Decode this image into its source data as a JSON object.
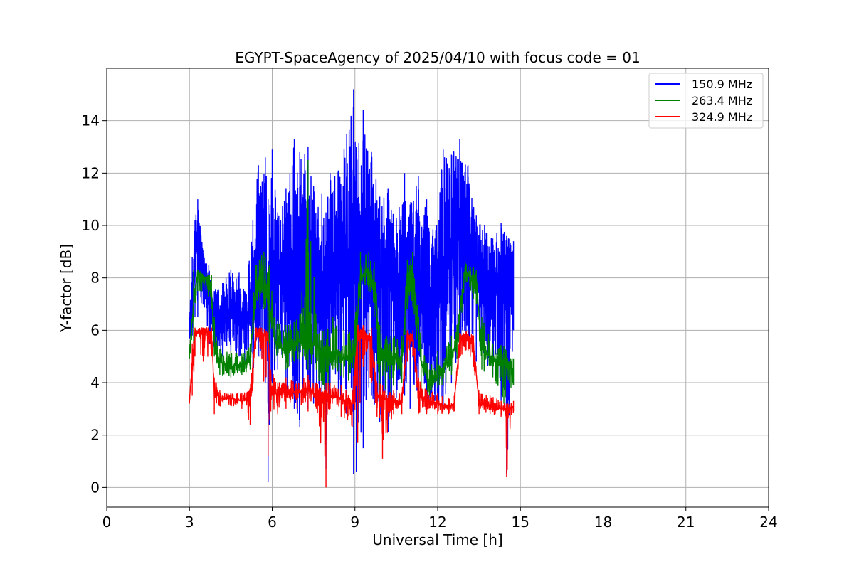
{
  "chart_data": {
    "type": "line",
    "title": "EGYPT-SpaceAgency of 2025/04/10 with focus code = 01",
    "xlabel": "Universal Time [h]",
    "ylabel": "Y-factor [dB]",
    "xlim": [
      0,
      24
    ],
    "ylim": [
      -0.75,
      16
    ],
    "xticks": [
      0,
      3,
      6,
      9,
      12,
      15,
      18,
      21,
      24
    ],
    "yticks": [
      0,
      2,
      4,
      6,
      8,
      10,
      12,
      14
    ],
    "grid": true,
    "legend_position": "top-right",
    "series": [
      {
        "name": "150.9 MHz",
        "color": "#0000ff",
        "x": [
          3.0,
          3.1,
          3.2,
          3.3,
          3.5,
          3.7,
          3.9,
          4.2,
          4.5,
          4.8,
          5.0,
          5.3,
          5.5,
          5.75,
          5.85,
          6.0,
          6.2,
          6.5,
          6.8,
          7.0,
          7.3,
          7.5,
          7.8,
          7.95,
          8.1,
          8.4,
          8.7,
          8.95,
          9.05,
          9.3,
          9.6,
          9.9,
          10.2,
          10.5,
          10.8,
          11.0,
          11.3,
          11.6,
          11.9,
          12.2,
          12.5,
          12.8,
          12.9,
          13.1,
          13.4,
          13.7,
          14.0,
          14.3,
          14.5,
          14.75
        ],
        "y": [
          6.0,
          7.0,
          8.5,
          9.5,
          9.0,
          7.0,
          6.5,
          6.3,
          6.5,
          6.8,
          6.2,
          7.5,
          8.5,
          7.5,
          5.5,
          7.0,
          8.0,
          7.5,
          7.0,
          8.5,
          8.0,
          7.0,
          8.0,
          6.0,
          7.5,
          8.0,
          8.5,
          9.5,
          9.0,
          8.5,
          8.0,
          7.5,
          8.0,
          7.0,
          6.5,
          8.0,
          7.0,
          6.5,
          7.0,
          7.5,
          9.0,
          9.5,
          10.0,
          9.0,
          8.0,
          7.5,
          7.0,
          8.0,
          7.5,
          8.0
        ],
        "y_max": [
          6.5,
          8.8,
          10.2,
          11.0,
          8.9,
          8.5,
          7.5,
          7.8,
          8.3,
          8.2,
          7.5,
          10.2,
          12.3,
          12.6,
          11.0,
          12.9,
          10.5,
          11.4,
          13.3,
          12.8,
          13.0,
          11.5,
          11.2,
          10.5,
          12.0,
          12.1,
          13.5,
          15.2,
          13.0,
          14.4,
          12.8,
          11.1,
          11.4,
          10.3,
          12.0,
          10.8,
          11.9,
          11.0,
          9.5,
          12.9,
          12.7,
          13.3,
          12.4,
          12.3,
          10.4,
          10.0,
          9.5,
          10.1,
          9.6,
          9.4
        ],
        "y_min": [
          5.7,
          5.8,
          6.5,
          6.5,
          7.0,
          5.5,
          5.2,
          5.0,
          5.2,
          5.0,
          4.8,
          4.5,
          5.0,
          4.0,
          0.2,
          4.0,
          4.5,
          3.5,
          3.0,
          2.3,
          3.0,
          3.2,
          3.0,
          0.7,
          3.5,
          3.5,
          2.8,
          0.5,
          0.6,
          1.5,
          3.5,
          2.5,
          2.1,
          3.4,
          3.5,
          3.0,
          3.0,
          3.2,
          3.3,
          3.0,
          4.0,
          5.0,
          6.0,
          5.5,
          4.8,
          4.7,
          4.3,
          3.3,
          0.5,
          6.0
        ]
      },
      {
        "name": "263.4 MHz",
        "color": "#008000",
        "x": [
          3.0,
          3.15,
          3.3,
          3.6,
          3.8,
          3.9,
          4.1,
          4.5,
          4.9,
          5.2,
          5.4,
          5.7,
          5.9,
          6.1,
          6.5,
          7.0,
          7.3,
          7.6,
          7.9,
          8.2,
          8.6,
          9.0,
          9.2,
          9.5,
          9.7,
          9.9,
          10.3,
          10.7,
          10.9,
          11.1,
          11.4,
          11.7,
          12.0,
          12.3,
          12.5,
          12.7,
          13.0,
          13.3,
          13.4,
          13.6,
          14.0,
          14.4,
          14.75
        ],
        "y": [
          5.1,
          7.0,
          8.2,
          8.0,
          7.5,
          5.5,
          4.8,
          4.6,
          4.7,
          4.9,
          7.5,
          7.6,
          7.0,
          5.5,
          5.2,
          5.6,
          5.3,
          5.5,
          5.0,
          5.2,
          4.9,
          5.2,
          8.0,
          8.3,
          7.5,
          5.3,
          5.0,
          4.8,
          7.8,
          8.2,
          4.8,
          4.0,
          4.3,
          4.7,
          5.0,
          5.6,
          8.3,
          7.8,
          7.9,
          5.3,
          4.9,
          4.8,
          4.5
        ],
        "y_max": [
          5.3,
          8.3,
          8.3,
          8.2,
          8.1,
          6.5,
          5.3,
          5.2,
          5.1,
          5.5,
          8.5,
          9.0,
          8.5,
          6.5,
          6.2,
          6.6,
          12.5,
          6.3,
          6.0,
          6.5,
          6.0,
          6.4,
          9.0,
          9.0,
          8.6,
          6.2,
          5.8,
          5.8,
          8.7,
          9.0,
          5.5,
          4.5,
          5.2,
          5.3,
          5.8,
          6.2,
          8.6,
          8.4,
          8.3,
          6.5,
          5.5,
          5.4,
          4.9
        ],
        "y_min": [
          4.9,
          5.5,
          7.5,
          7.5,
          6.8,
          5.0,
          4.3,
          4.2,
          4.3,
          4.5,
          6.8,
          6.8,
          5.5,
          4.8,
          4.5,
          4.8,
          4.5,
          4.5,
          2.5,
          4.5,
          4.2,
          3.5,
          7.2,
          7.5,
          6.5,
          3.5,
          3.6,
          4.0,
          6.8,
          6.9,
          3.8,
          3.5,
          3.8,
          4.0,
          4.3,
          4.9,
          7.8,
          7.2,
          7.0,
          4.5,
          4.2,
          3.2,
          3.9
        ]
      },
      {
        "name": "324.9 MHz",
        "color": "#ff0000",
        "x": [
          3.0,
          3.1,
          3.2,
          3.5,
          3.8,
          3.9,
          4.1,
          4.5,
          4.9,
          5.2,
          5.4,
          5.6,
          5.85,
          5.95,
          6.2,
          6.5,
          6.9,
          7.3,
          7.6,
          7.95,
          8.1,
          8.5,
          8.9,
          9.1,
          9.3,
          9.6,
          9.8,
          10.0,
          10.4,
          10.7,
          10.9,
          11.1,
          11.3,
          11.6,
          12.0,
          12.4,
          12.6,
          12.8,
          13.1,
          13.3,
          13.5,
          13.9,
          14.3,
          14.5,
          14.75
        ],
        "y": [
          3.3,
          4.8,
          5.9,
          6.0,
          5.9,
          3.7,
          3.4,
          3.4,
          3.3,
          3.4,
          5.9,
          5.9,
          5.8,
          3.8,
          3.5,
          3.7,
          3.6,
          3.8,
          3.5,
          3.6,
          3.5,
          3.4,
          3.2,
          5.8,
          6.0,
          5.6,
          3.5,
          3.4,
          3.3,
          3.2,
          5.8,
          5.7,
          3.6,
          3.3,
          3.2,
          3.1,
          3.2,
          5.7,
          5.8,
          5.4,
          3.2,
          3.1,
          3.0,
          3.0,
          3.1
        ],
        "y_max": [
          3.5,
          5.5,
          6.1,
          6.1,
          6.1,
          4.2,
          3.7,
          3.6,
          3.6,
          3.8,
          6.1,
          6.1,
          6.0,
          4.5,
          4.0,
          4.2,
          4.0,
          4.3,
          4.0,
          4.0,
          4.0,
          3.9,
          3.7,
          6.2,
          6.2,
          6.1,
          4.0,
          3.9,
          3.7,
          3.6,
          6.0,
          6.0,
          4.2,
          3.7,
          3.6,
          3.4,
          3.5,
          5.9,
          6.0,
          5.8,
          3.6,
          3.5,
          3.3,
          3.2,
          3.3
        ],
        "y_min": [
          3.2,
          3.5,
          5.0,
          4.8,
          5.0,
          2.8,
          3.1,
          3.1,
          3.0,
          2.4,
          5.3,
          5.3,
          1.2,
          2.9,
          2.8,
          3.0,
          3.0,
          2.9,
          3.0,
          0.0,
          3.0,
          2.7,
          2.3,
          1.7,
          4.6,
          4.0,
          2.7,
          1.1,
          2.8,
          2.8,
          4.8,
          5.0,
          2.8,
          2.8,
          2.8,
          2.8,
          2.9,
          5.0,
          5.2,
          4.6,
          2.8,
          2.8,
          2.7,
          0.4,
          2.9
        ]
      }
    ]
  }
}
